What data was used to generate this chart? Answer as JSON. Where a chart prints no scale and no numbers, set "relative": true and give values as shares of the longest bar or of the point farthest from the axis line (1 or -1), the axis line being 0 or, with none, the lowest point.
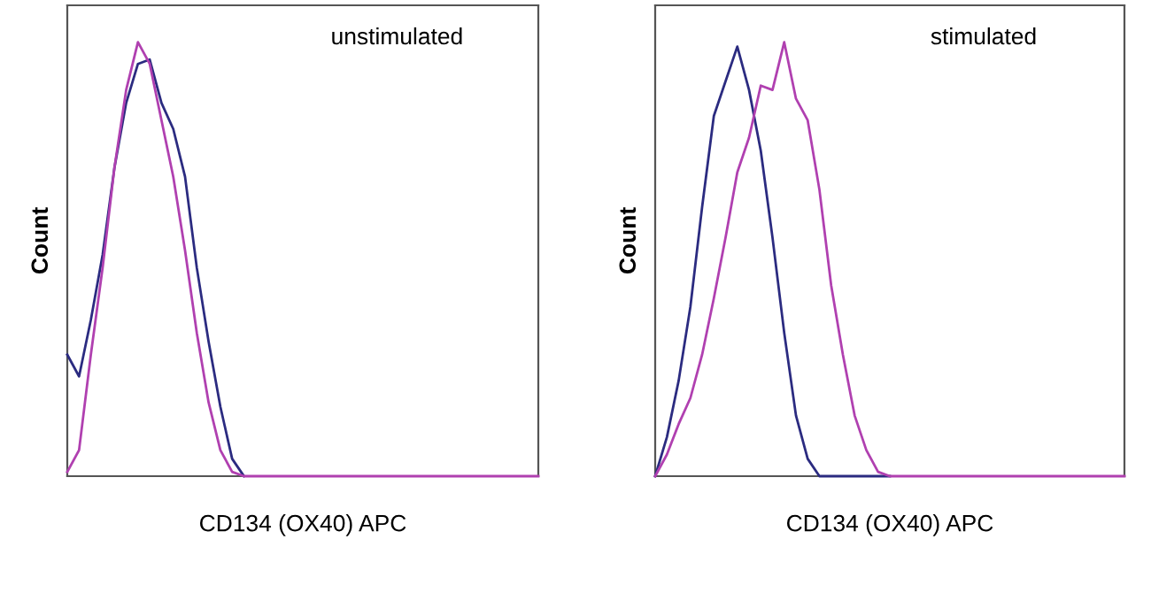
{
  "chart_data": [
    {
      "type": "line",
      "relative": true,
      "title": "unstimulated",
      "xlabel": "CD134 (OX40) APC",
      "ylabel": "Count",
      "grid": false,
      "legend": false,
      "marker": "none",
      "line_style": "solid",
      "categories": [
        null,
        null,
        null,
        null,
        null,
        null,
        null,
        null,
        null,
        null,
        null,
        null,
        null,
        null,
        null,
        null,
        null,
        null,
        null,
        null,
        null,
        null,
        null,
        null,
        null,
        null,
        null,
        null,
        null,
        null,
        null,
        null,
        null,
        null,
        null,
        null,
        null,
        null,
        null,
        null,
        null
      ],
      "series": [
        {
          "color": "#2b2b80",
          "values": [
            0.28,
            0.23,
            0.36,
            0.51,
            0.71,
            0.86,
            0.95,
            0.96,
            0.86,
            0.8,
            0.69,
            0.48,
            0.31,
            0.16,
            0.04,
            0,
            null,
            null,
            null,
            null,
            null,
            null,
            null,
            null,
            null,
            null,
            null,
            null,
            null,
            null,
            null,
            null,
            null,
            null,
            null,
            null,
            null,
            null,
            null,
            null,
            null
          ]
        },
        {
          "color": "#b040b0",
          "values": [
            0.01,
            0.06,
            0.28,
            0.48,
            0.71,
            0.89,
            1.0,
            0.95,
            0.82,
            0.69,
            0.52,
            0.33,
            0.17,
            0.06,
            0.01,
            0,
            0,
            0,
            0,
            0,
            0,
            0,
            0,
            0,
            0,
            0,
            0,
            0,
            0,
            0,
            0,
            0,
            0,
            0,
            0,
            0,
            0,
            0,
            0,
            0,
            0
          ]
        }
      ]
    },
    {
      "type": "line",
      "relative": true,
      "title": "stimulated",
      "xlabel": "CD134 (OX40) APC",
      "ylabel": "Count",
      "grid": false,
      "legend": false,
      "marker": "none",
      "line_style": "solid",
      "categories": [
        null,
        null,
        null,
        null,
        null,
        null,
        null,
        null,
        null,
        null,
        null,
        null,
        null,
        null,
        null,
        null,
        null,
        null,
        null,
        null,
        null,
        null,
        null,
        null,
        null,
        null,
        null,
        null,
        null,
        null,
        null,
        null,
        null,
        null,
        null,
        null,
        null,
        null,
        null,
        null,
        null
      ],
      "series": [
        {
          "color": "#2b2b80",
          "values": [
            0,
            0.09,
            0.22,
            0.39,
            0.62,
            0.83,
            0.91,
            0.99,
            0.89,
            0.75,
            0.55,
            0.33,
            0.14,
            0.04,
            0,
            0,
            0,
            0,
            0,
            0,
            0,
            null,
            null,
            null,
            null,
            null,
            null,
            null,
            null,
            null,
            null,
            null,
            null,
            null,
            null,
            null,
            null,
            null,
            null,
            null,
            null
          ]
        },
        {
          "color": "#b040b0",
          "values": [
            0,
            0.05,
            0.12,
            0.18,
            0.28,
            0.41,
            0.55,
            0.7,
            0.78,
            0.9,
            0.89,
            1.0,
            0.87,
            0.82,
            0.66,
            0.44,
            0.28,
            0.14,
            0.06,
            0.01,
            0,
            0,
            0,
            0,
            0,
            0,
            0,
            0,
            0,
            0,
            0,
            0,
            0,
            0,
            0,
            0,
            0,
            0,
            0,
            0,
            0
          ]
        }
      ]
    }
  ]
}
